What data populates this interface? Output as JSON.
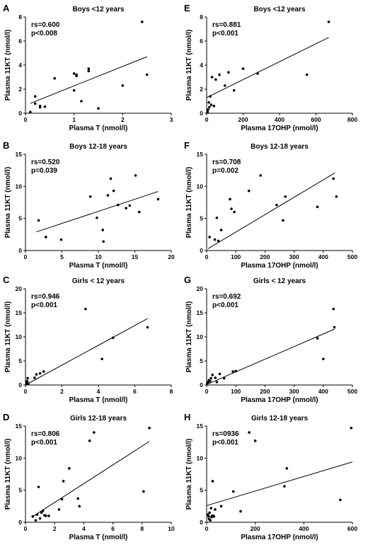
{
  "chart_data": [
    {
      "panel": "A",
      "type": "scatter",
      "title": "Boys <12 years",
      "stats": [
        "rs=0.600",
        "p<0.008"
      ],
      "xlabel": "Plasma T (nmol/l)",
      "ylabel": "Plasma 11KT (nmol/l)",
      "xlim": [
        0,
        3
      ],
      "ylim": [
        0,
        8
      ],
      "xticks": [
        0,
        1,
        2,
        3
      ],
      "yticks": [
        0,
        2,
        4,
        6,
        8
      ],
      "points": [
        [
          0.1,
          0.1
        ],
        [
          0.2,
          0.8
        ],
        [
          0.2,
          1.4
        ],
        [
          0.3,
          0.5
        ],
        [
          0.3,
          0.6
        ],
        [
          0.4,
          0.55
        ],
        [
          0.6,
          2.9
        ],
        [
          1.0,
          3.3
        ],
        [
          1.0,
          1.9
        ],
        [
          1.05,
          3.1
        ],
        [
          1.05,
          3.2
        ],
        [
          1.15,
          1.0
        ],
        [
          1.3,
          3.5
        ],
        [
          1.3,
          3.7
        ],
        [
          1.5,
          0.4
        ],
        [
          2.0,
          2.3
        ],
        [
          2.4,
          7.6
        ],
        [
          2.5,
          3.2
        ]
      ],
      "fit": [
        [
          0.1,
          0.82
        ],
        [
          2.5,
          4.7
        ]
      ]
    },
    {
      "panel": "B",
      "type": "scatter",
      "title": "Boys 12-18 years",
      "stats": [
        "rs=0.520",
        "p=0.039"
      ],
      "xlabel": "Plasma T (nmol/l)",
      "ylabel": "Plasma 11KT (nmol/l)",
      "xlim": [
        0,
        20
      ],
      "ylim": [
        0,
        15
      ],
      "xticks": [
        0,
        5,
        10,
        15,
        20
      ],
      "yticks": [
        0,
        5,
        10,
        15
      ],
      "points": [
        [
          1.8,
          4.7
        ],
        [
          2.8,
          2.1
        ],
        [
          4.9,
          1.7
        ],
        [
          8.9,
          8.4
        ],
        [
          9.8,
          5.1
        ],
        [
          10.6,
          3.2
        ],
        [
          10.7,
          1.4
        ],
        [
          11.3,
          8.6
        ],
        [
          11.7,
          11.2
        ],
        [
          12.1,
          9.3
        ],
        [
          12.7,
          7.1
        ],
        [
          13.8,
          6.6
        ],
        [
          14.3,
          7.0
        ],
        [
          15.1,
          11.7
        ],
        [
          15.6,
          6.0
        ],
        [
          18.2,
          8.0
        ]
      ],
      "fit": [
        [
          1.5,
          2.9
        ],
        [
          18.2,
          9.2
        ]
      ]
    },
    {
      "panel": "C",
      "type": "scatter",
      "title": "Girls < 12 years",
      "stats": [
        "rs=0.946",
        "p<0.001"
      ],
      "xlabel": "Plasma T (nmol/l)",
      "ylabel": "Plasma 11KT (nmol/l)",
      "xlim": [
        0,
        8
      ],
      "ylim": [
        0,
        20
      ],
      "xticks": [
        0,
        2,
        4,
        6,
        8
      ],
      "yticks": [
        0,
        5,
        10,
        15,
        20
      ],
      "points": [
        [
          0.05,
          0.3
        ],
        [
          0.08,
          0.8
        ],
        [
          0.1,
          0.6
        ],
        [
          0.12,
          1.4
        ],
        [
          0.15,
          0.2
        ],
        [
          0.5,
          1.5
        ],
        [
          0.6,
          2.2
        ],
        [
          0.8,
          2.4
        ],
        [
          1.0,
          2.8
        ],
        [
          3.3,
          15.8
        ],
        [
          4.2,
          5.4
        ],
        [
          4.8,
          9.8
        ],
        [
          6.7,
          12.0
        ]
      ],
      "fit": [
        [
          0,
          0
        ],
        [
          6.7,
          13.8
        ]
      ]
    },
    {
      "panel": "D",
      "type": "scatter",
      "title": "Girls 12-18 years",
      "stats": [
        "rs=0.806",
        "p<0.001"
      ],
      "xlabel": "Plasma T (nmol/l)",
      "ylabel": "Plasma 11KT (nmol/l)",
      "xlim": [
        0,
        10
      ],
      "ylim": [
        0,
        15
      ],
      "xticks": [
        0,
        2,
        4,
        6,
        8,
        10
      ],
      "yticks": [
        0,
        5,
        10,
        15
      ],
      "points": [
        [
          0.5,
          0.9
        ],
        [
          0.7,
          0.3
        ],
        [
          0.8,
          1.2
        ],
        [
          0.9,
          5.5
        ],
        [
          1.0,
          0.6
        ],
        [
          1.1,
          1.5
        ],
        [
          1.2,
          1.8
        ],
        [
          1.3,
          1.1
        ],
        [
          1.4,
          1.0
        ],
        [
          1.6,
          1.0
        ],
        [
          2.3,
          2.0
        ],
        [
          2.5,
          3.6
        ],
        [
          2.6,
          6.4
        ],
        [
          3.0,
          8.4
        ],
        [
          3.6,
          3.7
        ],
        [
          3.7,
          2.5
        ],
        [
          4.4,
          12.7
        ],
        [
          4.7,
          14.0
        ],
        [
          8.1,
          4.8
        ],
        [
          8.5,
          14.7
        ]
      ],
      "fit": [
        [
          0.5,
          0.9
        ],
        [
          8.5,
          12.6
        ]
      ]
    },
    {
      "panel": "E",
      "type": "scatter",
      "title": "Boys <12 years",
      "stats": [
        "rs=0.881",
        "p<0.001"
      ],
      "xlabel": "Plasma 17OHP (nmol/l)",
      "ylabel": "Plasma 11KT (nmol/l)",
      "xlim": [
        0,
        800
      ],
      "ylim": [
        0,
        8
      ],
      "xticks": [
        0,
        200,
        400,
        600,
        800
      ],
      "yticks": [
        0,
        2,
        4,
        6,
        8
      ],
      "points": [
        [
          5,
          0.1
        ],
        [
          8,
          0.3
        ],
        [
          12,
          0.9
        ],
        [
          15,
          0.5
        ],
        [
          20,
          1.4
        ],
        [
          25,
          0.7
        ],
        [
          30,
          3.0
        ],
        [
          40,
          0.6
        ],
        [
          50,
          2.8
        ],
        [
          70,
          3.2
        ],
        [
          100,
          2.3
        ],
        [
          120,
          3.4
        ],
        [
          150,
          1.9
        ],
        [
          200,
          3.7
        ],
        [
          280,
          3.3
        ],
        [
          550,
          3.2
        ],
        [
          670,
          7.6
        ]
      ],
      "fit": [
        [
          0,
          1.3
        ],
        [
          670,
          6.3
        ]
      ]
    },
    {
      "panel": "F",
      "type": "scatter",
      "title": "Boys 12-18 years",
      "stats": [
        "rs=0.708",
        "p=0.002"
      ],
      "xlabel": "Plasma 17OHP (nmol/l)",
      "ylabel": "Plasma 11KT (nmol/l)",
      "xlim": [
        0,
        500
      ],
      "ylim": [
        0,
        15
      ],
      "xticks": [
        0,
        100,
        200,
        300,
        400,
        500
      ],
      "yticks": [
        0,
        5,
        10,
        15
      ],
      "points": [
        [
          10,
          2.1
        ],
        [
          28,
          1.7
        ],
        [
          35,
          5.1
        ],
        [
          40,
          1.5
        ],
        [
          50,
          3.2
        ],
        [
          80,
          8.0
        ],
        [
          85,
          6.5
        ],
        [
          95,
          6.0
        ],
        [
          145,
          9.3
        ],
        [
          185,
          11.7
        ],
        [
          240,
          7.1
        ],
        [
          262,
          4.7
        ],
        [
          270,
          8.4
        ],
        [
          380,
          6.8
        ],
        [
          435,
          11.2
        ],
        [
          445,
          8.4
        ]
      ],
      "fit": [
        [
          5,
          0.3
        ],
        [
          440,
          12.1
        ]
      ]
    },
    {
      "panel": "G",
      "type": "scatter",
      "title": "Girls < 12 years",
      "stats": [
        "rs=0.692",
        "p<0.001"
      ],
      "xlabel": "Plasma 17OHP (nmol/l)",
      "ylabel": "Plasma 11KT (nmol/l)",
      "xlim": [
        0,
        500
      ],
      "ylim": [
        0,
        20
      ],
      "xticks": [
        0,
        100,
        200,
        300,
        400,
        500
      ],
      "yticks": [
        0,
        5,
        10,
        15,
        20
      ],
      "points": [
        [
          2,
          0.3
        ],
        [
          5,
          0.6
        ],
        [
          8,
          1.0
        ],
        [
          12,
          0.8
        ],
        [
          15,
          1.4
        ],
        [
          20,
          2.1
        ],
        [
          30,
          1.5
        ],
        [
          35,
          0.6
        ],
        [
          45,
          2.3
        ],
        [
          60,
          1.4
        ],
        [
          90,
          2.8
        ],
        [
          100,
          2.9
        ],
        [
          380,
          9.7
        ],
        [
          400,
          5.4
        ],
        [
          435,
          15.8
        ],
        [
          438,
          12.0
        ]
      ],
      "fit": [
        [
          0,
          0.1
        ],
        [
          438,
          11.6
        ]
      ]
    },
    {
      "panel": "H",
      "type": "scatter",
      "title": "Girls 12-18 years",
      "stats": [
        "rs=0936",
        "p<0.001"
      ],
      "xlabel": "Plasma 17OHP (nmol/l)",
      "ylabel": "Plasma 11KT (nmol/l)",
      "xlim": [
        0,
        600
      ],
      "ylim": [
        0,
        15
      ],
      "xticks": [
        0,
        200,
        400,
        600
      ],
      "yticks": [
        0,
        5,
        10,
        15
      ],
      "points": [
        [
          5,
          1.2
        ],
        [
          8,
          0.9
        ],
        [
          10,
          0.5
        ],
        [
          12,
          1.5
        ],
        [
          15,
          0.3
        ],
        [
          18,
          2.2
        ],
        [
          20,
          0.8
        ],
        [
          22,
          1.0
        ],
        [
          25,
          6.4
        ],
        [
          28,
          1.0
        ],
        [
          30,
          0.9
        ],
        [
          35,
          2.0
        ],
        [
          60,
          2.5
        ],
        [
          110,
          4.8
        ],
        [
          140,
          1.7
        ],
        [
          175,
          14.0
        ],
        [
          200,
          12.7
        ],
        [
          330,
          8.4
        ],
        [
          320,
          5.6
        ],
        [
          550,
          3.5
        ],
        [
          595,
          14.7
        ]
      ],
      "fit": [
        [
          0,
          2.6
        ],
        [
          600,
          9.4
        ]
      ]
    }
  ]
}
